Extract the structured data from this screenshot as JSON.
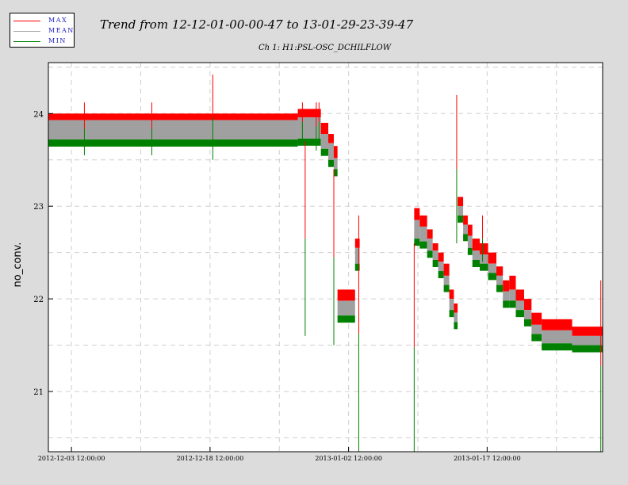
{
  "legend": {
    "items": [
      {
        "label": "MAX",
        "color": "#ff0000"
      },
      {
        "label": "MEAN",
        "color": "#a0a0a0"
      },
      {
        "label": "MIN",
        "color": "#008000"
      }
    ]
  },
  "chart_data": {
    "type": "line",
    "title": "Trend from 12-12-01-00-00-47 to 13-01-29-23-39-47",
    "subtitle": "Ch 1: H1:PSL-OSC_DCHILFLOW",
    "xlabel": "",
    "ylabel": "no_conv.",
    "y_ticks": [
      21,
      22,
      23,
      24
    ],
    "ylim": [
      20.35,
      24.55
    ],
    "x_ticks": [
      {
        "label": "2012-12-03 12:00:00",
        "day": 2.5
      },
      {
        "label": "2012-12-18 12:00:00",
        "day": 17.5
      },
      {
        "label": "2013-01-02 12:00:00",
        "day": 32.5
      },
      {
        "label": "2013-01-17 12:00:00",
        "day": 47.5
      }
    ],
    "xlim_days": [
      0,
      60
    ],
    "grid": true,
    "series_colors": {
      "max": "#ff0000",
      "mean": "#a0a0a0",
      "min": "#008000"
    },
    "segments": [
      {
        "d0": 0.0,
        "d1": 27.0,
        "max": 24.0,
        "mean": 23.93,
        "min": 23.72
      },
      {
        "d0": 27.0,
        "d1": 29.5,
        "max": 24.05,
        "mean": 23.96,
        "min": 23.73
      },
      {
        "d0": 29.5,
        "d1": 30.3,
        "max": 23.9,
        "mean": 23.78,
        "min": 23.62
      },
      {
        "d0": 30.3,
        "d1": 30.9,
        "max": 23.78,
        "mean": 23.68,
        "min": 23.5
      },
      {
        "d0": 30.9,
        "d1": 31.3,
        "max": 23.65,
        "mean": 23.52,
        "min": 23.4
      },
      {
        "d0": 31.3,
        "d1": 33.2,
        "max": 22.1,
        "mean": 21.98,
        "min": 21.82
      },
      {
        "d0": 33.2,
        "d1": 33.7,
        "max": 22.65,
        "mean": 22.55,
        "min": 22.38
      },
      {
        "d0": 39.6,
        "d1": 40.2,
        "max": 22.98,
        "mean": 22.85,
        "min": 22.65
      },
      {
        "d0": 40.2,
        "d1": 41.0,
        "max": 22.9,
        "mean": 22.78,
        "min": 22.62
      },
      {
        "d0": 41.0,
        "d1": 41.6,
        "max": 22.75,
        "mean": 22.65,
        "min": 22.52
      },
      {
        "d0": 41.6,
        "d1": 42.2,
        "max": 22.6,
        "mean": 22.52,
        "min": 22.42
      },
      {
        "d0": 42.2,
        "d1": 42.8,
        "max": 22.5,
        "mean": 22.4,
        "min": 22.3
      },
      {
        "d0": 42.8,
        "d1": 43.4,
        "max": 22.38,
        "mean": 22.25,
        "min": 22.15
      },
      {
        "d0": 43.4,
        "d1": 43.9,
        "max": 22.1,
        "mean": 22.0,
        "min": 21.88
      },
      {
        "d0": 43.9,
        "d1": 44.3,
        "max": 21.95,
        "mean": 21.85,
        "min": 21.75
      },
      {
        "d0": 44.3,
        "d1": 44.9,
        "max": 23.1,
        "mean": 23.0,
        "min": 22.9
      },
      {
        "d0": 44.9,
        "d1": 45.4,
        "max": 22.9,
        "mean": 22.8,
        "min": 22.7
      },
      {
        "d0": 45.4,
        "d1": 45.9,
        "max": 22.8,
        "mean": 22.68,
        "min": 22.55
      },
      {
        "d0": 45.9,
        "d1": 46.7,
        "max": 22.65,
        "mean": 22.52,
        "min": 22.42
      },
      {
        "d0": 46.7,
        "d1": 47.6,
        "max": 22.6,
        "mean": 22.48,
        "min": 22.38
      },
      {
        "d0": 47.6,
        "d1": 48.5,
        "max": 22.5,
        "mean": 22.38,
        "min": 22.28
      },
      {
        "d0": 48.5,
        "d1": 49.2,
        "max": 22.35,
        "mean": 22.25,
        "min": 22.15
      },
      {
        "d0": 49.2,
        "d1": 49.9,
        "max": 22.2,
        "mean": 22.08,
        "min": 21.98
      },
      {
        "d0": 49.9,
        "d1": 50.6,
        "max": 22.25,
        "mean": 22.1,
        "min": 21.98
      },
      {
        "d0": 50.6,
        "d1": 51.5,
        "max": 22.1,
        "mean": 21.98,
        "min": 21.88
      },
      {
        "d0": 51.5,
        "d1": 52.3,
        "max": 22.0,
        "mean": 21.88,
        "min": 21.78
      },
      {
        "d0": 52.3,
        "d1": 53.4,
        "max": 21.85,
        "mean": 21.72,
        "min": 21.62
      },
      {
        "d0": 53.4,
        "d1": 56.7,
        "max": 21.78,
        "mean": 21.66,
        "min": 21.52
      },
      {
        "d0": 56.7,
        "d1": 60.0,
        "max": 21.7,
        "mean": 21.6,
        "min": 21.5
      }
    ],
    "spikes": [
      {
        "day": 3.9,
        "lo": 23.55,
        "hi": 24.12
      },
      {
        "day": 11.2,
        "lo": 23.55,
        "hi": 24.12
      },
      {
        "day": 17.8,
        "lo": 23.5,
        "hi": 24.42
      },
      {
        "day": 27.5,
        "lo": 23.7,
        "hi": 24.12
      },
      {
        "day": 29.0,
        "lo": 23.6,
        "hi": 24.12
      },
      {
        "day": 29.3,
        "lo": 23.7,
        "hi": 24.12
      },
      {
        "day": 27.8,
        "lo": 21.6,
        "hi": 23.7
      },
      {
        "day": 30.9,
        "lo": 21.5,
        "hi": 23.4
      },
      {
        "day": 33.6,
        "lo": 20.35,
        "hi": 22.9
      },
      {
        "day": 39.6,
        "lo": 20.35,
        "hi": 22.6
      },
      {
        "day": 44.2,
        "lo": 22.6,
        "hi": 24.2
      },
      {
        "day": 47.0,
        "lo": 22.4,
        "hi": 22.9
      },
      {
        "day": 59.8,
        "lo": 20.35,
        "hi": 22.2
      }
    ]
  }
}
